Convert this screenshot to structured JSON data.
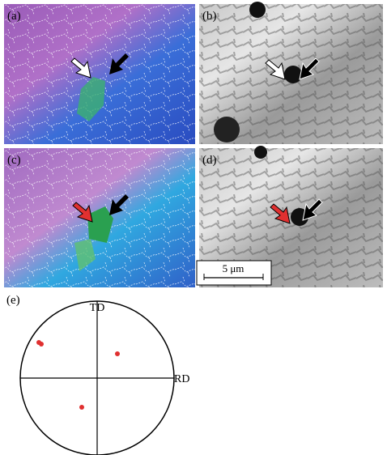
{
  "panels": [
    {
      "label": "(a)"
    },
    {
      "label": "(b)"
    },
    {
      "label": "(c)"
    },
    {
      "label": "(d)"
    }
  ],
  "scale_bar": "5 μm",
  "pole_figure": {
    "label": "(e)",
    "top_axis": "TD",
    "right_axis": "RD"
  }
}
